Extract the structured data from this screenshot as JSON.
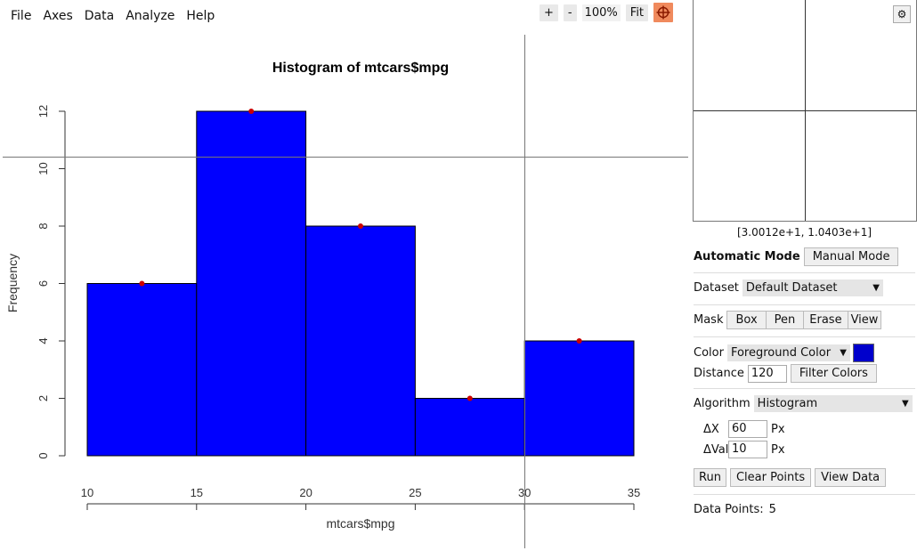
{
  "menu": [
    "File",
    "Axes",
    "Data",
    "Analyze",
    "Help"
  ],
  "zoom": {
    "plus": "+",
    "minus": "-",
    "level": "100%",
    "fit": "Fit"
  },
  "chart_data": {
    "type": "bar",
    "title": "Histogram of mtcars$mpg",
    "xlabel": "mtcars$mpg",
    "ylabel": "Frequency",
    "bins": [
      [
        10,
        15
      ],
      [
        15,
        20
      ],
      [
        20,
        25
      ],
      [
        25,
        30
      ],
      [
        30,
        35
      ]
    ],
    "values": [
      6,
      12,
      8,
      2,
      4
    ],
    "xlim": [
      10,
      35
    ],
    "ylim": [
      0,
      12
    ],
    "xticks": [
      "10",
      "15",
      "20",
      "25",
      "30",
      "35"
    ],
    "yticks": [
      "0",
      "2",
      "4",
      "6",
      "8",
      "10",
      "12"
    ],
    "bar_color": "#0000ff",
    "point_color": "#cc0000",
    "crosshair": [
      30.012,
      10.403
    ]
  },
  "side": {
    "coords": "[3.0012e+1, 1.0403e+1]",
    "auto_label": "Automatic Mode",
    "manual_label": "Manual Mode",
    "dataset_label": "Dataset",
    "dataset_value": "Default Dataset",
    "mask_label": "Mask",
    "mask_buttons": [
      "Box",
      "Pen",
      "Erase",
      "View"
    ],
    "color_label": "Color",
    "color_value": "Foreground Color",
    "color_swatch": "#0000cc",
    "distance_label": "Distance",
    "distance_value": "120",
    "filter_label": "Filter Colors",
    "algo_label": "Algorithm",
    "algo_value": "Histogram",
    "dx_label": "ΔX",
    "dx_value": "60",
    "dval_label": "ΔVal",
    "dval_value": "10",
    "px": "Px",
    "run": "Run",
    "clear": "Clear Points",
    "view_data": "View Data",
    "points_label": "Data Points:",
    "points_count": "5"
  }
}
